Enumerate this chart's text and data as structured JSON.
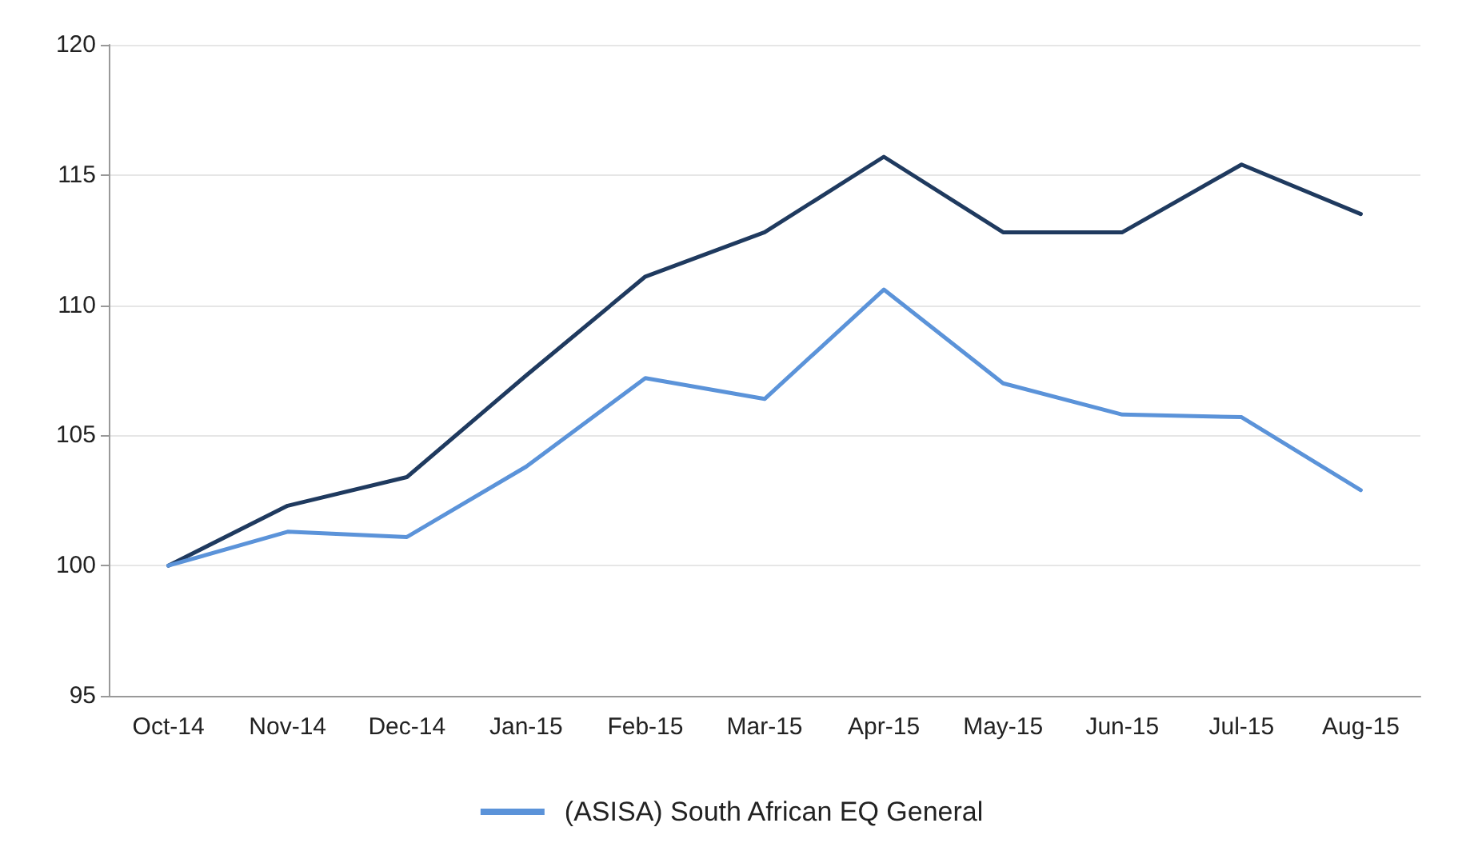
{
  "chart_data": {
    "type": "line",
    "categories": [
      "Oct-14",
      "Nov-14",
      "Dec-14",
      "Jan-15",
      "Feb-15",
      "Mar-15",
      "Apr-15",
      "May-15",
      "Jun-15",
      "Jul-15",
      "Aug-15"
    ],
    "series": [
      {
        "color": "#1f3a5f",
        "values": [
          100,
          102.3,
          103.4,
          107.3,
          111.1,
          112.8,
          115.7,
          112.8,
          112.8,
          115.4,
          113.5
        ]
      },
      {
        "name": "(ASISA) South African EQ General",
        "color": "#5b93d9",
        "values": [
          100,
          101.3,
          101.1,
          103.8,
          107.2,
          106.4,
          110.6,
          107.0,
          105.8,
          105.7,
          102.9
        ]
      }
    ],
    "ylim": [
      95,
      120
    ],
    "yticks": [
      95,
      100,
      105,
      110,
      115,
      120
    ],
    "grid": "y",
    "legend": "bottom",
    "marker": "none",
    "line_style": "solid"
  }
}
